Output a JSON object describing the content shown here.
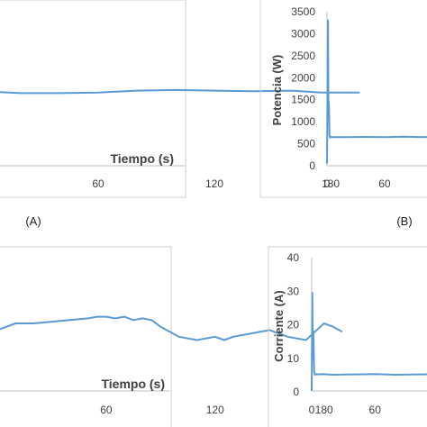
{
  "labels": {
    "a": "(A)",
    "b": "(B)"
  },
  "chart_data": [
    {
      "id": "A",
      "type": "line",
      "xlabel": "Tiempo (s)",
      "xticks": [
        60,
        120,
        180
      ],
      "xlim": [
        0,
        200
      ],
      "ylim": [
        0,
        1
      ],
      "series": [
        {
          "x": [
            0,
            20,
            40,
            60,
            80,
            100,
            120,
            140,
            160,
            175,
            195
          ],
          "y": [
            0.705,
            0.69,
            0.69,
            0.695,
            0.71,
            0.715,
            0.71,
            0.705,
            0.71,
            0.695,
            0.695
          ]
        }
      ]
    },
    {
      "id": "B",
      "type": "line",
      "ylabel": "Potencia (W)",
      "yticks": [
        0,
        500,
        1000,
        1500,
        2000,
        2500,
        3000,
        3500
      ],
      "xticks": [
        0,
        60
      ],
      "ylim": [
        0,
        3500
      ],
      "xlim": [
        0,
        200
      ],
      "series": [
        {
          "x": [
            0,
            1,
            1.5,
            2,
            2.5,
            3,
            4,
            5,
            10,
            20,
            40,
            60,
            80,
            100,
            120,
            140,
            160,
            170,
            184
          ],
          "y": [
            50,
            3300,
            1200,
            1450,
            700,
            640,
            660,
            650,
            650,
            650,
            655,
            650,
            660,
            650,
            655,
            650,
            660,
            650,
            640
          ]
        }
      ]
    },
    {
      "id": "C",
      "type": "line",
      "xlabel": "Tiempo (s)",
      "xticks": [
        0,
        60,
        120,
        180
      ],
      "xlim": [
        0,
        200
      ],
      "ylim": [
        0,
        1
      ],
      "series": [
        {
          "x": [
            0,
            10,
            20,
            30,
            40,
            50,
            55,
            60,
            65,
            70,
            75,
            80,
            85,
            90,
            95,
            100,
            110,
            120,
            125,
            130,
            140,
            150,
            160,
            170,
            175,
            180,
            185,
            190
          ],
          "y": [
            0.56,
            0.6,
            0.6,
            0.61,
            0.62,
            0.63,
            0.64,
            0.64,
            0.63,
            0.64,
            0.62,
            0.63,
            0.62,
            0.58,
            0.55,
            0.52,
            0.5,
            0.52,
            0.5,
            0.52,
            0.54,
            0.56,
            0.52,
            0.5,
            0.55,
            0.6,
            0.58,
            0.55
          ]
        }
      ]
    },
    {
      "id": "D",
      "type": "line",
      "ylabel": "Corriente (A)",
      "yticks": [
        0,
        10,
        20,
        30,
        40
      ],
      "xticks": [
        0,
        60
      ],
      "ylim": [
        0,
        40
      ],
      "xlim": [
        0,
        200
      ],
      "series": [
        {
          "x": [
            0,
            0.6,
            1,
            1.6,
            2.3,
            3,
            4,
            5,
            10,
            20,
            40,
            60,
            80,
            100,
            120,
            140,
            160,
            170,
            184
          ],
          "y": [
            0.3,
            29.5,
            10,
            18,
            6,
            5.1,
            5.3,
            5.2,
            5.3,
            5.1,
            5.2,
            5.3,
            5.1,
            5.2,
            5.3,
            5.2,
            5.1,
            5.2,
            5.2
          ]
        }
      ]
    }
  ]
}
